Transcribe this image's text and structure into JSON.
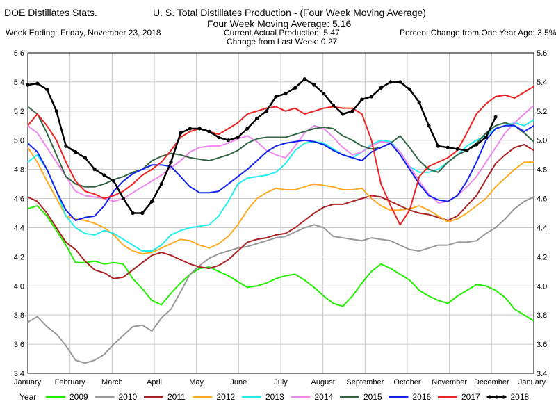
{
  "header": {
    "left_title": "DOE Distillates Stats.",
    "main_title": "U. S. Total Distillates Production - (Four Week Moving Average)",
    "subtitle": "Four Week Moving Average:  5.16",
    "week_ending_label": "Week Ending:",
    "week_ending_value": "Friday, November 23, 2018",
    "current_production": "Current Actual Production:  5.47",
    "change_last_week": "Change from Last Week:  0.27",
    "pct_change": "Percent Change from One Year Ago:  3.5%"
  },
  "chart_data": {
    "type": "line",
    "ylim": [
      3.4,
      5.6
    ],
    "y_ticks": [
      "3.4",
      "3.6",
      "3.8",
      "4.0",
      "4.2",
      "4.4",
      "4.6",
      "4.8",
      "5.0",
      "5.2",
      "5.4",
      "5.6"
    ],
    "x_tick_labels": [
      "January",
      "February",
      "March",
      "April",
      "May",
      "June",
      "July",
      "August",
      "September",
      "October",
      "November",
      "December",
      "January"
    ],
    "legend_title": "Year",
    "grid": true,
    "series": [
      {
        "name": "2009",
        "color": "#22ee00",
        "values": [
          4.53,
          4.55,
          4.48,
          4.38,
          4.28,
          4.16,
          4.16,
          4.17,
          4.15,
          4.16,
          4.15,
          4.05,
          3.98,
          3.9,
          3.87,
          3.95,
          4.02,
          4.08,
          4.12,
          4.13,
          4.1,
          4.07,
          4.03,
          3.99,
          4.0,
          4.02,
          4.05,
          4.07,
          4.08,
          4.04,
          3.99,
          3.93,
          3.88,
          3.86,
          3.93,
          4.02,
          4.1,
          4.15,
          4.12,
          4.08,
          4.04,
          3.97,
          3.93,
          3.9,
          3.88,
          3.93,
          3.97,
          4.01,
          4.0,
          3.97,
          3.92,
          3.84,
          3.8,
          3.76
        ]
      },
      {
        "name": "2010",
        "color": "#999999",
        "values": [
          3.75,
          3.79,
          3.72,
          3.67,
          3.59,
          3.49,
          3.47,
          3.49,
          3.53,
          3.6,
          3.66,
          3.72,
          3.73,
          3.69,
          3.78,
          3.84,
          3.96,
          4.08,
          4.14,
          4.19,
          4.22,
          4.24,
          4.26,
          4.27,
          4.29,
          4.31,
          4.33,
          4.34,
          4.37,
          4.4,
          4.42,
          4.4,
          4.34,
          4.33,
          4.32,
          4.31,
          4.33,
          4.32,
          4.31,
          4.28,
          4.25,
          4.24,
          4.26,
          4.28,
          4.28,
          4.3,
          4.3,
          4.31,
          4.36,
          4.4,
          4.46,
          4.53,
          4.58,
          4.61
        ]
      },
      {
        "name": "2011",
        "color": "#aa2222",
        "values": [
          4.61,
          4.58,
          4.5,
          4.4,
          4.3,
          4.25,
          4.17,
          4.11,
          4.09,
          4.05,
          4.06,
          4.11,
          4.16,
          4.21,
          4.23,
          4.21,
          4.18,
          4.15,
          4.13,
          4.12,
          4.14,
          4.18,
          4.24,
          4.3,
          4.32,
          4.33,
          4.35,
          4.36,
          4.4,
          4.45,
          4.5,
          4.54,
          4.56,
          4.56,
          4.58,
          4.6,
          4.62,
          4.61,
          4.58,
          4.55,
          4.52,
          4.5,
          4.49,
          4.47,
          4.45,
          4.48,
          4.55,
          4.62,
          4.73,
          4.84,
          4.9,
          4.95,
          4.97,
          4.93
        ]
      },
      {
        "name": "2012",
        "color": "#ffaa22",
        "values": [
          4.95,
          4.85,
          4.72,
          4.6,
          4.48,
          4.46,
          4.45,
          4.43,
          4.4,
          4.35,
          4.28,
          4.24,
          4.22,
          4.23,
          4.26,
          4.29,
          4.32,
          4.31,
          4.28,
          4.26,
          4.29,
          4.34,
          4.42,
          4.52,
          4.6,
          4.64,
          4.67,
          4.66,
          4.66,
          4.68,
          4.7,
          4.69,
          4.68,
          4.66,
          4.66,
          4.67,
          4.6,
          4.55,
          4.52,
          4.52,
          4.53,
          4.55,
          4.52,
          4.48,
          4.44,
          4.46,
          4.5,
          4.55,
          4.6,
          4.68,
          4.74,
          4.8,
          4.85,
          4.85
        ]
      },
      {
        "name": "2013",
        "color": "#22eeee",
        "values": [
          4.85,
          4.9,
          4.8,
          4.65,
          4.48,
          4.4,
          4.36,
          4.35,
          4.38,
          4.36,
          4.32,
          4.28,
          4.24,
          4.24,
          4.28,
          4.35,
          4.38,
          4.4,
          4.41,
          4.42,
          4.48,
          4.58,
          4.7,
          4.74,
          4.75,
          4.76,
          4.78,
          4.84,
          4.93,
          4.98,
          4.99,
          4.98,
          4.94,
          4.9,
          4.88,
          4.92,
          4.97,
          5.0,
          4.99,
          4.92,
          4.82,
          4.78,
          4.78,
          4.8,
          4.85,
          4.9,
          4.96,
          5.0,
          5.03,
          5.08,
          5.1,
          5.12,
          5.1,
          5.14
        ]
      },
      {
        "name": "2014",
        "color": "#ee88ee",
        "values": [
          5.1,
          5.05,
          4.95,
          4.85,
          4.75,
          4.65,
          4.62,
          4.61,
          4.6,
          4.58,
          4.6,
          4.64,
          4.68,
          4.72,
          4.76,
          4.81,
          4.86,
          4.92,
          4.95,
          4.96,
          4.96,
          4.98,
          5.01,
          5.03,
          4.99,
          4.93,
          4.9,
          4.88,
          4.96,
          5.05,
          5.1,
          5.08,
          5.02,
          4.95,
          4.9,
          4.92,
          4.96,
          4.99,
          4.98,
          4.92,
          4.82,
          4.72,
          4.63,
          4.57,
          4.58,
          4.62,
          4.68,
          4.75,
          4.85,
          4.95,
          5.05,
          5.12,
          5.18,
          5.24
        ]
      },
      {
        "name": "2015",
        "color": "#336644",
        "values": [
          5.23,
          5.18,
          5.05,
          4.9,
          4.75,
          4.7,
          4.68,
          4.68,
          4.7,
          4.73,
          4.75,
          4.78,
          4.8,
          4.86,
          4.89,
          4.91,
          4.9,
          4.88,
          4.87,
          4.86,
          4.88,
          4.9,
          4.93,
          4.98,
          5.01,
          5.02,
          5.02,
          5.02,
          5.04,
          5.06,
          5.08,
          5.09,
          5.08,
          5.03,
          5.0,
          4.96,
          4.94,
          4.95,
          4.98,
          5.03,
          4.95,
          4.86,
          4.8,
          4.78,
          4.85,
          4.9,
          4.93,
          4.98,
          5.05,
          5.1,
          5.12,
          5.1,
          5.05,
          4.99
        ]
      },
      {
        "name": "2016",
        "color": "#1122ee",
        "values": [
          4.98,
          4.92,
          4.8,
          4.65,
          4.52,
          4.45,
          4.47,
          4.48,
          4.55,
          4.65,
          4.72,
          4.77,
          4.8,
          4.83,
          4.83,
          4.82,
          4.75,
          4.68,
          4.64,
          4.64,
          4.65,
          4.7,
          4.75,
          4.8,
          4.86,
          4.92,
          4.96,
          4.98,
          4.99,
          5.0,
          4.99,
          4.97,
          4.93,
          4.9,
          4.88,
          4.86,
          4.92,
          4.95,
          4.98,
          4.9,
          4.8,
          4.7,
          4.62,
          4.59,
          4.58,
          4.62,
          4.72,
          4.85,
          5.0,
          5.08,
          5.1,
          5.1,
          5.06,
          5.1
        ]
      },
      {
        "name": "2017",
        "color": "#ee2222",
        "values": [
          5.1,
          5.18,
          5.1,
          5.0,
          4.85,
          4.72,
          4.65,
          4.63,
          4.6,
          4.62,
          4.65,
          4.7,
          4.76,
          4.8,
          4.85,
          4.93,
          5.02,
          5.06,
          5.08,
          5.06,
          5.04,
          5.08,
          5.12,
          5.18,
          5.2,
          5.22,
          5.23,
          5.2,
          5.22,
          5.18,
          5.2,
          5.22,
          5.23,
          5.22,
          5.22,
          5.18,
          5.0,
          4.7,
          4.55,
          4.42,
          4.52,
          4.75,
          4.82,
          4.85,
          4.88,
          4.93,
          5.05,
          5.18,
          5.25,
          5.3,
          5.31,
          5.29,
          5.33,
          5.37
        ]
      },
      {
        "name": "2018",
        "color": "#000000",
        "values": [
          5.38,
          5.39,
          5.35,
          5.2,
          4.96,
          4.92,
          4.88,
          4.8,
          4.76,
          4.72,
          4.6,
          4.5,
          4.5,
          4.58,
          4.7,
          4.85,
          5.05,
          5.08,
          5.08,
          5.06,
          5.02,
          5.0,
          5.02,
          5.08,
          5.15,
          5.2,
          5.3,
          5.32,
          5.36,
          5.42,
          5.38,
          5.32,
          5.24,
          5.18,
          5.2,
          5.28,
          5.3,
          5.36,
          5.4,
          5.4,
          5.35,
          5.26,
          5.1,
          4.96,
          4.95,
          4.94,
          4.93,
          4.97,
          5.02,
          5.16
        ]
      }
    ]
  }
}
